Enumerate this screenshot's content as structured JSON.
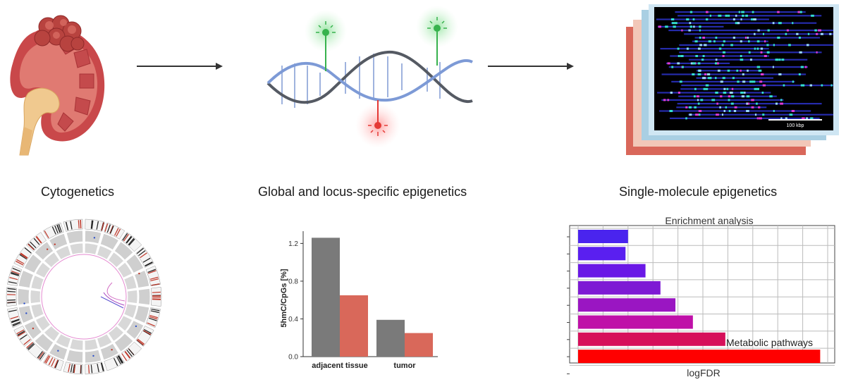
{
  "stages": [
    {
      "label": "Cytogenetics"
    },
    {
      "label": "Global and locus-specific epigenetics"
    },
    {
      "label": "Single-molecule epigenetics"
    }
  ],
  "scale_bar_label": "100 kbp",
  "colors": {
    "kidney": "#c9484a",
    "dna_dark": "#555a63",
    "dna_blue": "#7d9ad6",
    "green_probe": "#37b24d",
    "red_probe": "#e53935",
    "bar_grey": "#7a7a7a",
    "bar_salmon": "#d9685a",
    "enrichment_high": "#ff0000",
    "enrichment_low": "#4a24ee"
  },
  "chart_data": [
    {
      "type": "bar",
      "title": "",
      "xlabel": "",
      "ylabel": "5hmC/CpGs [%]",
      "ylim": [
        0,
        1.3
      ],
      "yticks": [
        "0.0",
        "0.4",
        "0.8",
        "1.2"
      ],
      "categories": [
        "adjacent tissue",
        "tumor"
      ],
      "series": [
        {
          "values": [
            1.26,
            0.39
          ],
          "color": "#7a7a7a"
        },
        {
          "values": [
            0.65,
            0.25
          ],
          "color": "#d9685a"
        }
      ],
      "grid": false,
      "legend": "none"
    },
    {
      "type": "bar",
      "orientation": "horizontal",
      "title": "Enrichment analysis",
      "xlabel": "logFDR",
      "ylabel": "",
      "annotation": "Metabolic pathways",
      "values": [
        2.0,
        1.9,
        2.7,
        3.3,
        3.9,
        4.6,
        5.9,
        9.7
      ],
      "colors": [
        "#4a24ee",
        "#5a1ff0",
        "#6a18e6",
        "#7e1ad4",
        "#9a16c2",
        "#bf10a8",
        "#d60f5a",
        "#ff0000"
      ],
      "grid": true,
      "legend": "none"
    }
  ]
}
